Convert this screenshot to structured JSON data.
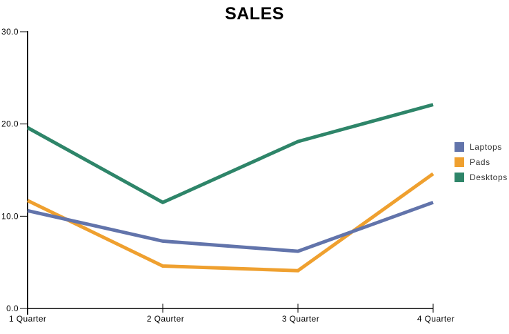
{
  "chart_data": {
    "type": "line",
    "title": "SALES",
    "categories": [
      "1 Quarter",
      "2 Qaurter",
      "3 Quarter",
      "4 Quarter"
    ],
    "series": [
      {
        "name": "Laptops",
        "color": "#6274ab",
        "values": [
          10.6,
          7.3,
          6.2,
          11.5
        ]
      },
      {
        "name": "Pads",
        "color": "#efa02f",
        "values": [
          11.7,
          4.6,
          4.1,
          14.6
        ]
      },
      {
        "name": "Desktops",
        "color": "#2e8569",
        "values": [
          19.6,
          11.5,
          18.1,
          22.1
        ]
      }
    ],
    "ylim": [
      0,
      30
    ],
    "y_ticks": [
      {
        "value": 0,
        "label": "0.0"
      },
      {
        "value": 10,
        "label": "10.0"
      },
      {
        "value": 20,
        "label": "20.0"
      },
      {
        "value": 30,
        "label": "30.0"
      }
    ],
    "grid": false,
    "legend_position": "right",
    "axis_color": "#000000",
    "background": "#ffffff",
    "line_width": 5
  }
}
